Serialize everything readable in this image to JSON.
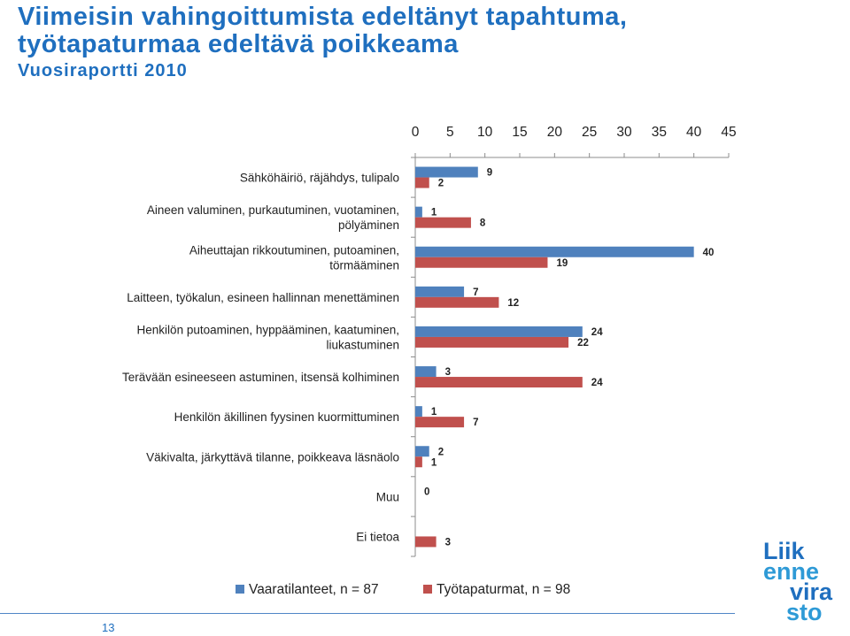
{
  "title": {
    "line1": "Viimeisin vahingoittumista edeltänyt tapahtuma,",
    "line2": "työtapaturmaa edeltävä poikkeama",
    "subtitle": "Vuosiraportti 2010"
  },
  "page_number": "13",
  "logo": {
    "lines": [
      "Liik",
      "enne",
      "vira",
      "sto"
    ]
  },
  "colors": {
    "series1": "#4f81bd",
    "series2": "#c0504d",
    "title": "#1f6fbf",
    "axis": "#8c8c8c"
  },
  "chart_data": {
    "type": "bar",
    "orientation": "horizontal",
    "xlim": [
      0,
      45
    ],
    "x_ticks": [
      0,
      5,
      10,
      15,
      20,
      25,
      30,
      35,
      40,
      45
    ],
    "x_axis_position": "top",
    "grid": false,
    "legend_position": "bottom",
    "categories": [
      [
        "Sähköhäiriö, räjähdys, tulipalo"
      ],
      [
        "Aineen valuminen, purkautuminen, vuotaminen,",
        "pölyäminen"
      ],
      [
        "Aiheuttajan rikkoutuminen, putoaminen,",
        "törmääminen"
      ],
      [
        "Laitteen, työkalun, esineen hallinnan menettäminen"
      ],
      [
        "Henkilön putoaminen, hyppääminen, kaatuminen,",
        "liukastuminen"
      ],
      [
        "Terävään esineeseen astuminen, itsensä kolhiminen"
      ],
      [
        "Henkilön äkillinen fyysinen kuormittuminen"
      ],
      [
        "Väkivalta, järkyttävä tilanne, poikkeava läsnäolo"
      ],
      [
        "Muu"
      ],
      [
        "Ei tietoa"
      ]
    ],
    "series": [
      {
        "name": "Vaaratilanteet, n = 87",
        "color": "#4f81bd",
        "values": [
          9,
          1,
          40,
          7,
          24,
          3,
          1,
          2,
          0,
          null
        ]
      },
      {
        "name": "Työtapaturmat, n = 98",
        "color": "#c0504d",
        "values": [
          2,
          8,
          19,
          12,
          22,
          24,
          7,
          1,
          null,
          3
        ]
      }
    ]
  }
}
